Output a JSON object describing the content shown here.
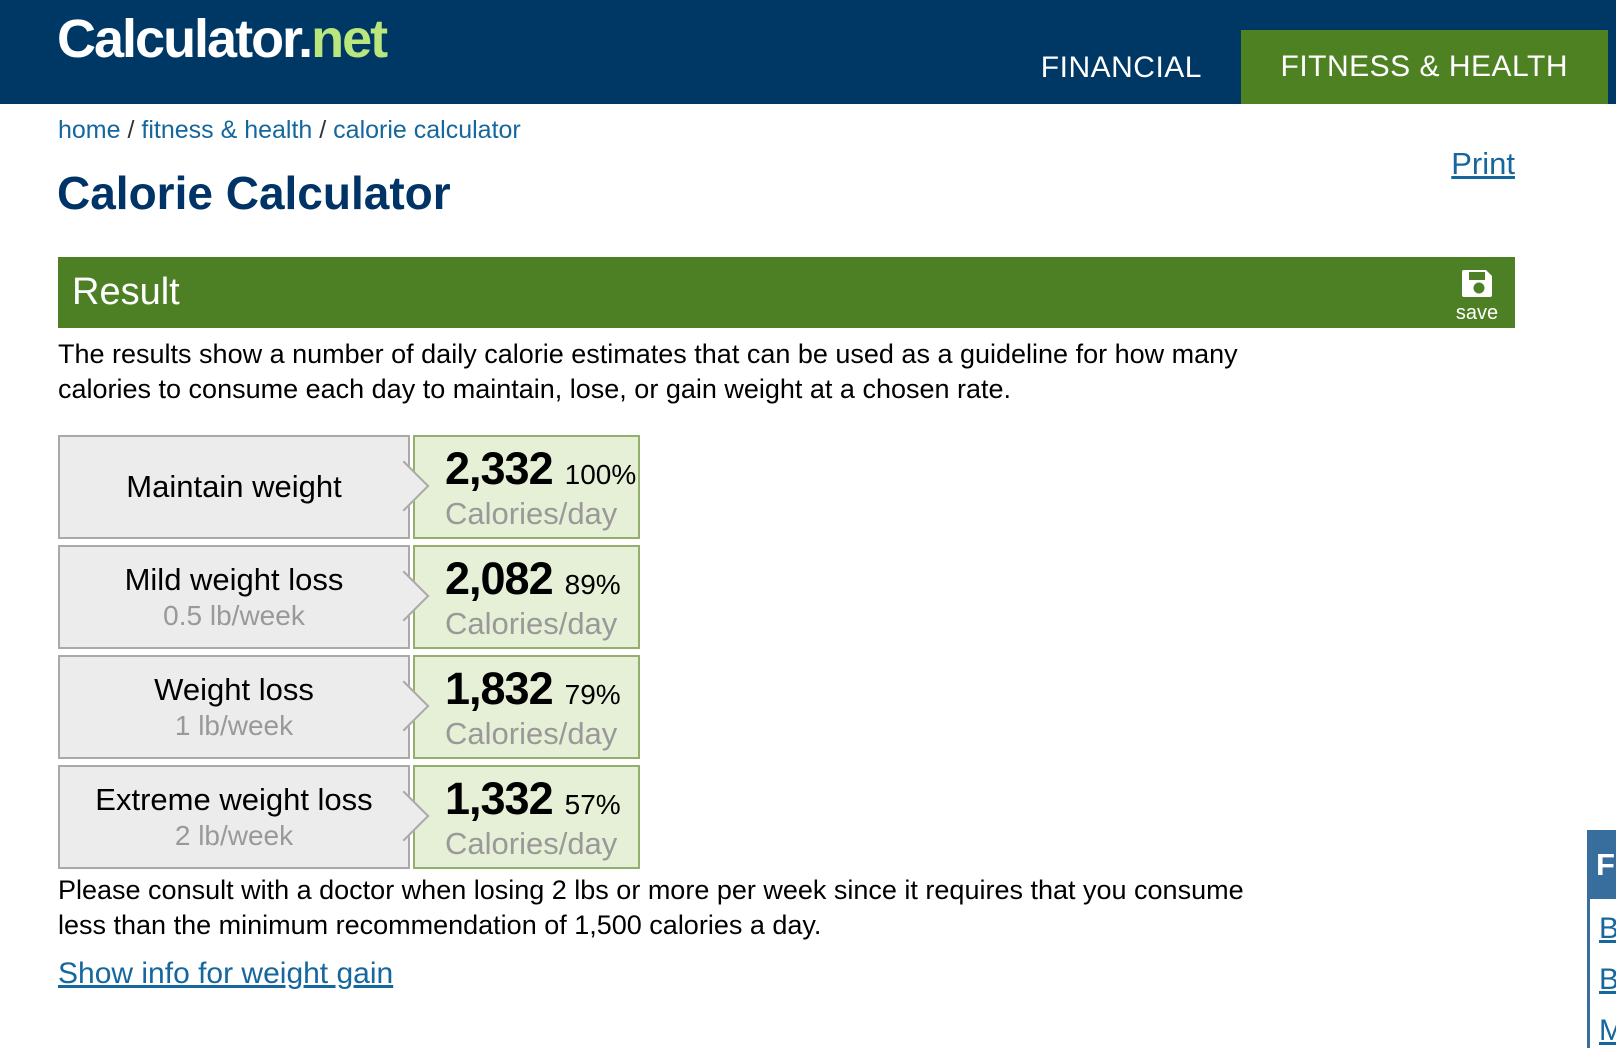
{
  "navbar": {
    "logo_part1": "Calculator.",
    "logo_part2": "net",
    "nav_items": [
      {
        "label": "FINANCIAL",
        "active": false
      },
      {
        "label": "FITNESS & HEALTH",
        "active": true
      }
    ]
  },
  "breadcrumb": {
    "items": [
      "home",
      "fitness & health",
      "calorie calculator"
    ],
    "separator": " / "
  },
  "print_label": "Print",
  "page": {
    "title": "Calorie Calculator"
  },
  "result": {
    "header": "Result",
    "save_label": "save",
    "description": "The results show a number of daily calorie estimates that can be used as a guideline for how many\ncalories to consume each day to maintain, lose, or gain weight at a chosen rate.",
    "rows": [
      {
        "label": "Maintain weight",
        "sublabel": "",
        "value": "2,332",
        "percent": "100%",
        "unit": "Calories/day"
      },
      {
        "label": "Mild weight loss",
        "sublabel": "0.5 lb/week",
        "value": "2,082",
        "percent": "89%",
        "unit": "Calories/day"
      },
      {
        "label": "Weight loss",
        "sublabel": "1 lb/week",
        "value": "1,832",
        "percent": "79%",
        "unit": "Calories/day"
      },
      {
        "label": "Extreme weight loss",
        "sublabel": "2 lb/week",
        "value": "1,332",
        "percent": "57%",
        "unit": "Calories/day"
      }
    ],
    "note": "Please consult with a doctor when losing 2 lbs or more per week since it requires that you consume\nless than the minimum recommendation of 1,500 calories a day.",
    "toggle_link": "Show info for weight gain"
  },
  "sidebar_fragment": {
    "header_visible_text": "F",
    "link_visible_texts": [
      "B",
      "B",
      "M"
    ]
  },
  "colors": {
    "navbar_navy": "#003865",
    "logo_green": "#b9e77e",
    "banner_green": "#4d7f24",
    "tab_green": "#4e8122",
    "link_blue": "#15679d",
    "title_navy": "#003366",
    "label_box_gray": "#ececec",
    "label_box_border": "#a9a9a9",
    "value_box_green": "#e6f0d6",
    "value_box_border": "#94ae6e",
    "sidebar_blue": "#376e9e",
    "muted_gray": "#999999"
  }
}
